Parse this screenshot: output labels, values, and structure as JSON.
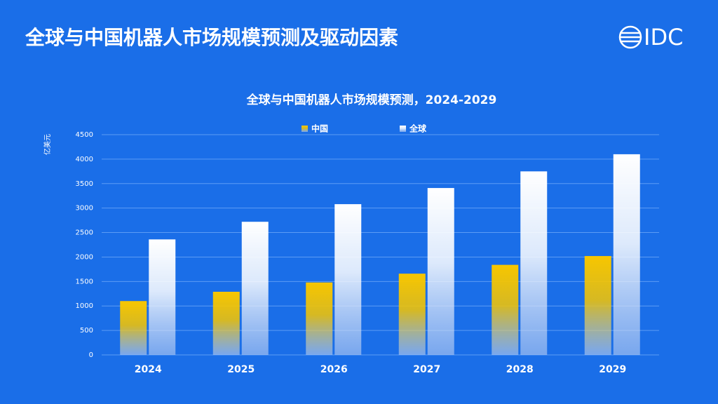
{
  "header": {
    "title": "全球与中国机器人市场规模预测及驱动因素",
    "logo": "IDC"
  },
  "chart_data": {
    "type": "bar",
    "title": "全球与中国机器人市场规模预测，2024-2029",
    "y_label": "亿美元",
    "categories": [
      "2024",
      "2025",
      "2026",
      "2027",
      "2028",
      "2029"
    ],
    "series": [
      {
        "name": "中国",
        "color": "#f7c600",
        "values": [
          1100,
          1290,
          1480,
          1660,
          1840,
          2020
        ]
      },
      {
        "name": "全球",
        "color": "#ffffff",
        "values": [
          2360,
          2720,
          3080,
          3410,
          3750,
          4100
        ]
      }
    ],
    "ylim": [
      0,
      4500
    ],
    "yticks": [
      0,
      500,
      1000,
      1500,
      2000,
      2500,
      3000,
      3500,
      4000,
      4500
    ],
    "grid": true,
    "legend": "top"
  }
}
